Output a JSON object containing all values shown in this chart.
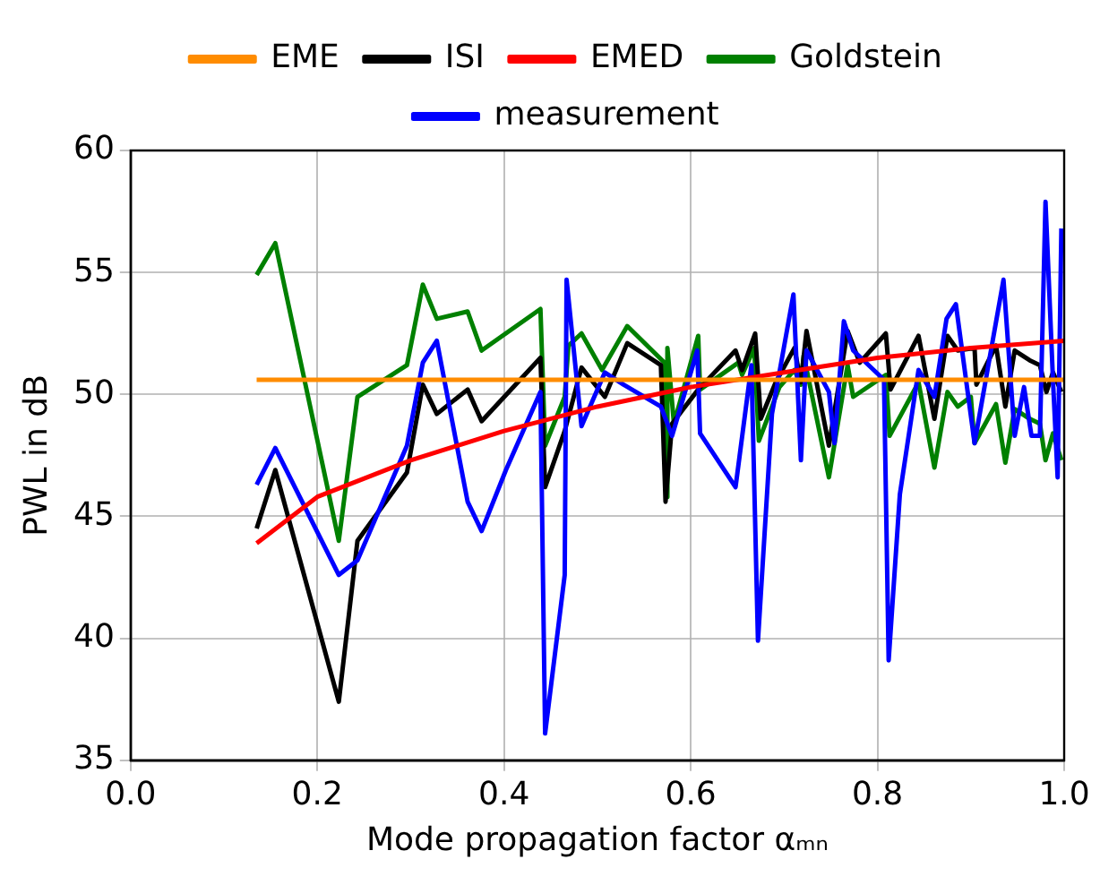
{
  "chart_data": {
    "type": "line",
    "xlabel": "Mode propagation factor αₘₙ",
    "ylabel": "PWL in dB",
    "xlim": [
      0.0,
      1.0
    ],
    "xticks": [
      {
        "value": 0,
        "label": "0.0"
      },
      {
        "value": 0.2,
        "label": "0.2"
      },
      {
        "value": 0.4,
        "label": "0.4"
      },
      {
        "value": 0.6,
        "label": "0.6"
      },
      {
        "value": 0.8,
        "label": "0.8"
      },
      {
        "value": 1,
        "label": "1.0"
      }
    ],
    "ylim": [
      35,
      60
    ],
    "yticks": [
      35,
      40,
      45,
      50,
      55,
      60
    ],
    "grid": true,
    "legend": "top",
    "marker": "none",
    "line_style": "solid",
    "series": [
      {
        "name": "EME",
        "color": "#ff8c00",
        "x": [
          0.135,
          1.0
        ],
        "values": [
          50.6,
          50.6
        ]
      },
      {
        "name": "EMED",
        "color": "#ff0000",
        "x": [
          0.135,
          0.2,
          0.3,
          0.4,
          0.5,
          0.6,
          0.7,
          0.8,
          0.9,
          1.0
        ],
        "values": [
          43.9,
          45.8,
          47.3,
          48.5,
          49.5,
          50.3,
          50.9,
          51.5,
          51.9,
          52.2
        ]
      },
      {
        "name": "measurement",
        "color": "#0000ff",
        "x": [
          0.135,
          0.155,
          0.223,
          0.243,
          0.296,
          0.313,
          0.328,
          0.361,
          0.376,
          0.402,
          0.439,
          0.444,
          0.465,
          0.467,
          0.483,
          0.508,
          0.528,
          0.568,
          0.58,
          0.607,
          0.61,
          0.648,
          0.665,
          0.672,
          0.687,
          0.71,
          0.718,
          0.724,
          0.748,
          0.754,
          0.764,
          0.774,
          0.807,
          0.812,
          0.824,
          0.844,
          0.861,
          0.874,
          0.884,
          0.904,
          0.935,
          0.947,
          0.957,
          0.965,
          0.974,
          0.98,
          0.988,
          0.993,
          0.997
        ],
        "values": [
          46.3,
          47.8,
          42.6,
          43.2,
          47.9,
          51.3,
          52.2,
          45.6,
          44.4,
          46.9,
          50.1,
          36.1,
          42.6,
          54.7,
          48.7,
          50.9,
          50.4,
          49.5,
          48.3,
          51.8,
          48.4,
          46.2,
          51.2,
          39.9,
          49.2,
          54.1,
          47.3,
          51.8,
          50.1,
          48.0,
          53.0,
          51.8,
          50.6,
          39.1,
          45.9,
          51.0,
          49.9,
          53.1,
          53.7,
          48.0,
          54.7,
          48.3,
          50.3,
          48.3,
          48.3,
          57.9,
          50.6,
          46.6,
          56.8
        ]
      },
      {
        "name": "ISI",
        "color": "#000000",
        "x": [
          0.135,
          0.155,
          0.223,
          0.243,
          0.296,
          0.313,
          0.328,
          0.361,
          0.376,
          0.439,
          0.444,
          0.465,
          0.483,
          0.508,
          0.532,
          0.568,
          0.573,
          0.58,
          0.608,
          0.648,
          0.655,
          0.669,
          0.675,
          0.691,
          0.711,
          0.718,
          0.724,
          0.748,
          0.768,
          0.781,
          0.809,
          0.814,
          0.844,
          0.861,
          0.875,
          0.886,
          0.904,
          0.906,
          0.927,
          0.937,
          0.947,
          0.963,
          0.974,
          0.981,
          0.988,
          0.997
        ],
        "values": [
          44.5,
          46.9,
          37.4,
          44.0,
          46.8,
          50.4,
          49.2,
          50.2,
          48.9,
          51.5,
          46.2,
          48.5,
          51.1,
          49.9,
          52.1,
          51.2,
          45.6,
          48.8,
          50.2,
          51.8,
          51.0,
          52.5,
          49.0,
          50.5,
          51.9,
          50.5,
          52.6,
          47.9,
          52.6,
          51.3,
          52.5,
          50.2,
          52.4,
          49.0,
          52.4,
          51.8,
          51.9,
          50.4,
          52.0,
          49.5,
          51.8,
          51.4,
          51.2,
          50.1,
          50.9,
          50.1
        ]
      },
      {
        "name": "Goldstein",
        "color": "#008000",
        "x": [
          0.135,
          0.155,
          0.223,
          0.243,
          0.296,
          0.313,
          0.328,
          0.361,
          0.376,
          0.439,
          0.444,
          0.465,
          0.469,
          0.483,
          0.505,
          0.532,
          0.572,
          0.574,
          0.575,
          0.582,
          0.608,
          0.61,
          0.651,
          0.655,
          0.668,
          0.673,
          0.695,
          0.711,
          0.718,
          0.721,
          0.748,
          0.768,
          0.774,
          0.809,
          0.813,
          0.844,
          0.861,
          0.875,
          0.886,
          0.9,
          0.904,
          0.927,
          0.937,
          0.947,
          0.963,
          0.974,
          0.98,
          0.988,
          0.997
        ],
        "values": [
          54.9,
          56.2,
          44.0,
          49.9,
          51.2,
          54.5,
          53.1,
          53.4,
          51.8,
          53.5,
          47.9,
          49.9,
          52.0,
          52.5,
          51.0,
          52.8,
          51.3,
          45.8,
          51.9,
          48.8,
          52.4,
          50.2,
          51.3,
          50.8,
          51.9,
          48.1,
          50.3,
          51.0,
          50.4,
          51.6,
          46.6,
          51.2,
          49.9,
          50.8,
          48.3,
          50.5,
          47.0,
          50.1,
          49.5,
          49.9,
          48.0,
          49.6,
          47.2,
          49.4,
          49.0,
          48.8,
          47.3,
          48.4,
          47.3
        ]
      }
    ]
  }
}
